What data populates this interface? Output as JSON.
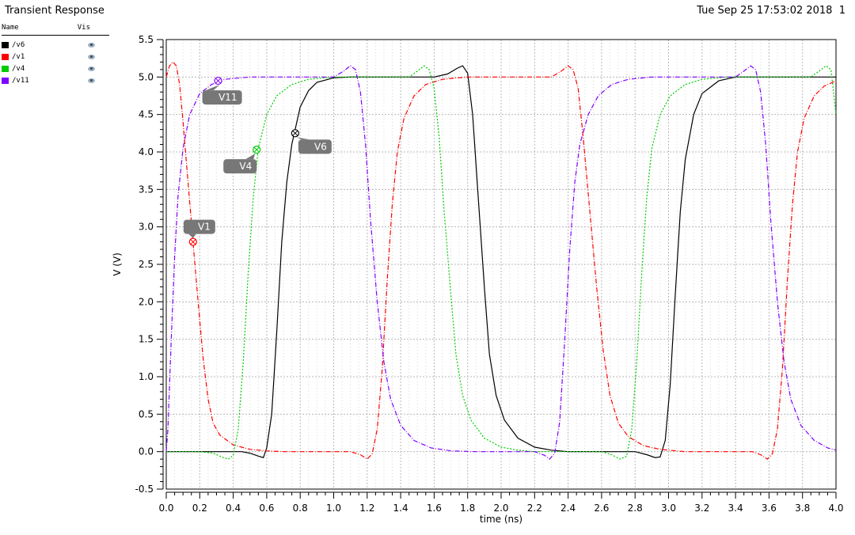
{
  "window": {
    "title": "Transient Response",
    "timestamp": "Tue Sep 25 17:53:02 2018",
    "page_number": "1"
  },
  "legend": {
    "header_name": "Name",
    "header_vis": "Vis",
    "entries": [
      {
        "name": "/v6",
        "color": "#000000",
        "icon": "eye-icon"
      },
      {
        "name": "/v1",
        "color": "#ff0000",
        "icon": "eye-icon"
      },
      {
        "name": "/v4",
        "color": "#00cc00",
        "icon": "eye-icon"
      },
      {
        "name": "/v11",
        "color": "#8000ff",
        "icon": "eye-icon"
      }
    ]
  },
  "chart_data": {
    "type": "line",
    "xlabel": "time (ns)",
    "ylabel": "V (V)",
    "xlim": [
      0.0,
      4.0
    ],
    "ylim": [
      -0.5,
      5.5
    ],
    "x_ticks": [
      "0.0",
      "0.2",
      "0.4",
      "0.6",
      "0.8",
      "1.0",
      "1.2",
      "1.4",
      "1.6",
      "1.8",
      "2.0",
      "2.2",
      "2.4",
      "2.6",
      "2.8",
      "3.0",
      "3.2",
      "3.4",
      "3.6",
      "3.8",
      "4.0"
    ],
    "y_ticks": [
      "-0.5",
      "0.0",
      "0.5",
      "1.0",
      "1.5",
      "2.0",
      "2.5",
      "3.0",
      "3.5",
      "4.0",
      "4.5",
      "5.0",
      "5.5"
    ],
    "grid": true,
    "series": [
      {
        "name": "/v6",
        "color": "#000000",
        "dash": "solid",
        "points": [
          [
            0,
            0
          ],
          [
            0.45,
            0
          ],
          [
            0.5,
            -0.02
          ],
          [
            0.55,
            -0.06
          ],
          [
            0.58,
            -0.08
          ],
          [
            0.6,
            0.05
          ],
          [
            0.63,
            0.5
          ],
          [
            0.66,
            1.6
          ],
          [
            0.69,
            2.8
          ],
          [
            0.72,
            3.6
          ],
          [
            0.75,
            4.1
          ],
          [
            0.8,
            4.6
          ],
          [
            0.85,
            4.82
          ],
          [
            0.9,
            4.93
          ],
          [
            1.0,
            4.99
          ],
          [
            1.1,
            5.0
          ],
          [
            1.6,
            5.0
          ],
          [
            1.68,
            5.04
          ],
          [
            1.74,
            5.12
          ],
          [
            1.77,
            5.15
          ],
          [
            1.8,
            5.05
          ],
          [
            1.83,
            4.5
          ],
          [
            1.86,
            3.5
          ],
          [
            1.9,
            2.2
          ],
          [
            1.93,
            1.3
          ],
          [
            1.97,
            0.75
          ],
          [
            2.02,
            0.42
          ],
          [
            2.1,
            0.18
          ],
          [
            2.2,
            0.06
          ],
          [
            2.3,
            0.02
          ],
          [
            2.4,
            0.0
          ],
          [
            2.8,
            0.0
          ],
          [
            2.87,
            -0.04
          ],
          [
            2.92,
            -0.08
          ],
          [
            2.95,
            -0.07
          ],
          [
            2.98,
            0.15
          ],
          [
            3.01,
            0.9
          ],
          [
            3.04,
            2.1
          ],
          [
            3.07,
            3.2
          ],
          [
            3.1,
            3.9
          ],
          [
            3.15,
            4.5
          ],
          [
            3.2,
            4.78
          ],
          [
            3.3,
            4.95
          ],
          [
            3.4,
            5.0
          ],
          [
            4.0,
            5.0
          ]
        ]
      },
      {
        "name": "/v1",
        "color": "#ff0000",
        "dash": "dashdot",
        "points": [
          [
            0,
            5.0
          ],
          [
            0.02,
            5.15
          ],
          [
            0.04,
            5.2
          ],
          [
            0.06,
            5.15
          ],
          [
            0.08,
            4.9
          ],
          [
            0.1,
            4.4
          ],
          [
            0.13,
            3.6
          ],
          [
            0.16,
            2.8
          ],
          [
            0.19,
            2.0
          ],
          [
            0.22,
            1.25
          ],
          [
            0.25,
            0.7
          ],
          [
            0.28,
            0.38
          ],
          [
            0.32,
            0.22
          ],
          [
            0.4,
            0.09
          ],
          [
            0.5,
            0.03
          ],
          [
            0.6,
            0.01
          ],
          [
            0.7,
            0.0
          ],
          [
            1.1,
            0.0
          ],
          [
            1.16,
            -0.04
          ],
          [
            1.2,
            -0.1
          ],
          [
            1.23,
            -0.03
          ],
          [
            1.26,
            0.3
          ],
          [
            1.29,
            1.1
          ],
          [
            1.32,
            2.3
          ],
          [
            1.35,
            3.3
          ],
          [
            1.38,
            4.0
          ],
          [
            1.42,
            4.45
          ],
          [
            1.48,
            4.75
          ],
          [
            1.55,
            4.9
          ],
          [
            1.65,
            4.97
          ],
          [
            1.8,
            5.0
          ],
          [
            2.3,
            5.0
          ],
          [
            2.36,
            5.08
          ],
          [
            2.4,
            5.15
          ],
          [
            2.43,
            5.1
          ],
          [
            2.46,
            4.85
          ],
          [
            2.49,
            4.2
          ],
          [
            2.53,
            3.2
          ],
          [
            2.57,
            2.2
          ],
          [
            2.61,
            1.35
          ],
          [
            2.65,
            0.75
          ],
          [
            2.7,
            0.38
          ],
          [
            2.76,
            0.2
          ],
          [
            2.85,
            0.08
          ],
          [
            2.95,
            0.03
          ],
          [
            3.1,
            0.0
          ],
          [
            3.5,
            0.0
          ],
          [
            3.55,
            -0.04
          ],
          [
            3.59,
            -0.1
          ],
          [
            3.62,
            -0.03
          ],
          [
            3.65,
            0.3
          ],
          [
            3.68,
            1.1
          ],
          [
            3.71,
            2.3
          ],
          [
            3.74,
            3.3
          ],
          [
            3.77,
            4.0
          ],
          [
            3.81,
            4.45
          ],
          [
            3.87,
            4.75
          ],
          [
            3.93,
            4.88
          ],
          [
            4.0,
            4.95
          ]
        ]
      },
      {
        "name": "/v4",
        "color": "#00cc00",
        "dash": "dotted",
        "points": [
          [
            0,
            0
          ],
          [
            0.2,
            0.0
          ],
          [
            0.28,
            -0.02
          ],
          [
            0.33,
            -0.07
          ],
          [
            0.37,
            -0.1
          ],
          [
            0.4,
            -0.05
          ],
          [
            0.43,
            0.3
          ],
          [
            0.46,
            1.2
          ],
          [
            0.49,
            2.4
          ],
          [
            0.52,
            3.4
          ],
          [
            0.55,
            4.05
          ],
          [
            0.6,
            4.5
          ],
          [
            0.66,
            4.75
          ],
          [
            0.75,
            4.9
          ],
          [
            0.85,
            4.97
          ],
          [
            1.0,
            5.0
          ],
          [
            1.45,
            5.0
          ],
          [
            1.5,
            5.08
          ],
          [
            1.54,
            5.15
          ],
          [
            1.57,
            5.1
          ],
          [
            1.6,
            4.85
          ],
          [
            1.63,
            4.2
          ],
          [
            1.66,
            3.2
          ],
          [
            1.7,
            2.1
          ],
          [
            1.73,
            1.3
          ],
          [
            1.77,
            0.75
          ],
          [
            1.82,
            0.42
          ],
          [
            1.9,
            0.18
          ],
          [
            2.0,
            0.06
          ],
          [
            2.1,
            0.02
          ],
          [
            2.2,
            0.0
          ],
          [
            2.6,
            0.0
          ],
          [
            2.66,
            -0.04
          ],
          [
            2.71,
            -0.1
          ],
          [
            2.75,
            -0.06
          ],
          [
            2.78,
            0.3
          ],
          [
            2.81,
            1.2
          ],
          [
            2.84,
            2.4
          ],
          [
            2.87,
            3.4
          ],
          [
            2.9,
            4.05
          ],
          [
            2.95,
            4.5
          ],
          [
            3.01,
            4.75
          ],
          [
            3.1,
            4.9
          ],
          [
            3.2,
            4.97
          ],
          [
            3.35,
            5.0
          ],
          [
            3.85,
            5.0
          ],
          [
            3.9,
            5.08
          ],
          [
            3.94,
            5.15
          ],
          [
            3.97,
            5.1
          ],
          [
            4.0,
            4.5
          ]
        ]
      },
      {
        "name": "/v11",
        "color": "#8000ff",
        "dash": "dashdot",
        "points": [
          [
            0,
            0
          ],
          [
            0.01,
            0.3
          ],
          [
            0.03,
            1.5
          ],
          [
            0.05,
            2.6
          ],
          [
            0.07,
            3.4
          ],
          [
            0.1,
            4.05
          ],
          [
            0.14,
            4.5
          ],
          [
            0.2,
            4.78
          ],
          [
            0.27,
            4.9
          ],
          [
            0.35,
            4.97
          ],
          [
            0.5,
            5.0
          ],
          [
            1.0,
            5.0
          ],
          [
            1.06,
            5.08
          ],
          [
            1.1,
            5.15
          ],
          [
            1.13,
            5.1
          ],
          [
            1.16,
            4.8
          ],
          [
            1.19,
            4.1
          ],
          [
            1.22,
            3.1
          ],
          [
            1.26,
            2.0
          ],
          [
            1.3,
            1.2
          ],
          [
            1.34,
            0.7
          ],
          [
            1.4,
            0.35
          ],
          [
            1.48,
            0.15
          ],
          [
            1.58,
            0.05
          ],
          [
            1.7,
            0.01
          ],
          [
            1.85,
            0.0
          ],
          [
            2.2,
            0.0
          ],
          [
            2.26,
            -0.05
          ],
          [
            2.29,
            -0.1
          ],
          [
            2.32,
            -0.02
          ],
          [
            2.35,
            0.4
          ],
          [
            2.38,
            1.5
          ],
          [
            2.41,
            2.7
          ],
          [
            2.44,
            3.6
          ],
          [
            2.47,
            4.1
          ],
          [
            2.52,
            4.5
          ],
          [
            2.58,
            4.75
          ],
          [
            2.66,
            4.9
          ],
          [
            2.76,
            4.97
          ],
          [
            2.9,
            5.0
          ],
          [
            3.4,
            5.0
          ],
          [
            3.45,
            5.08
          ],
          [
            3.49,
            5.15
          ],
          [
            3.52,
            5.1
          ],
          [
            3.55,
            4.8
          ],
          [
            3.58,
            4.1
          ],
          [
            3.61,
            3.1
          ],
          [
            3.65,
            2.0
          ],
          [
            3.69,
            1.2
          ],
          [
            3.73,
            0.7
          ],
          [
            3.79,
            0.35
          ],
          [
            3.87,
            0.15
          ],
          [
            3.95,
            0.05
          ],
          [
            4.0,
            0.02
          ]
        ]
      }
    ],
    "markers": [
      {
        "label": "V11",
        "series": "/v11",
        "x": 0.31,
        "y": 4.95
      },
      {
        "label": "V4",
        "series": "/v4",
        "x": 0.54,
        "y": 4.03
      },
      {
        "label": "V6",
        "series": "/v6",
        "x": 0.77,
        "y": 4.25
      },
      {
        "label": "V1",
        "series": "/v1",
        "x": 0.16,
        "y": 2.8
      }
    ]
  }
}
